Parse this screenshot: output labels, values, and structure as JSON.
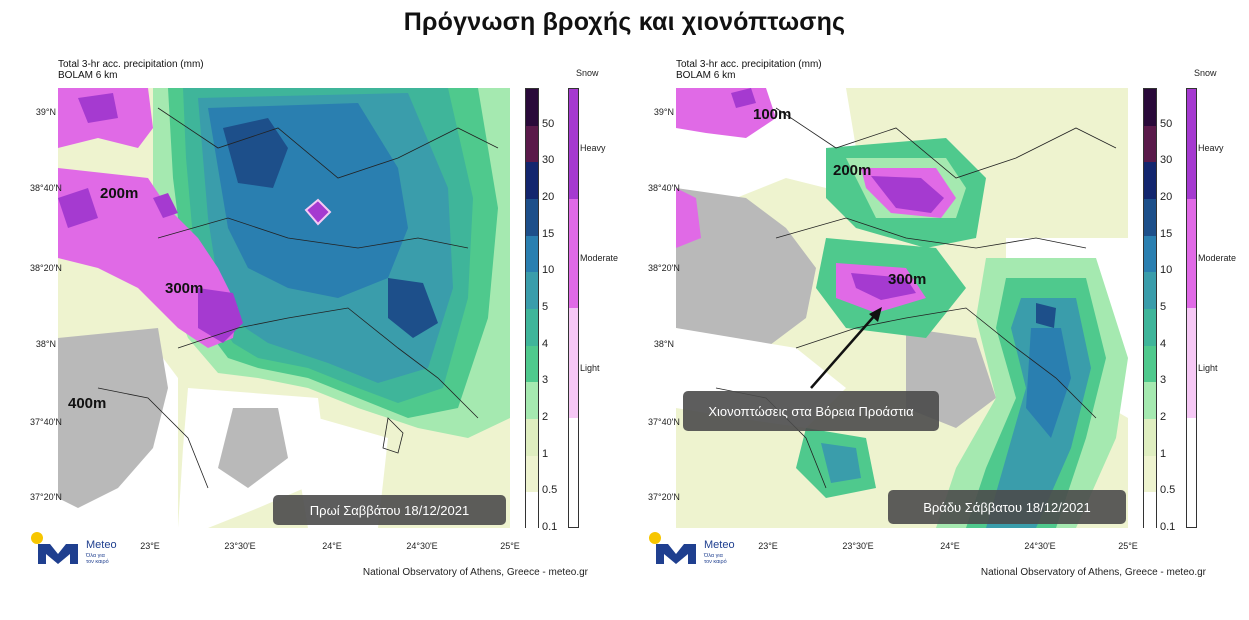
{
  "page": {
    "title": "Πρόγνωση βροχής και χιονόπτωσης"
  },
  "panels": [
    {
      "header_line1": "Total 3-hr acc. precipitation (mm)",
      "header_line2": "BOLAM 6 km",
      "caption": "Πρωί Σαββάτου 18/12/2021",
      "alt_labels": [
        "200m",
        "300m",
        "400m"
      ]
    },
    {
      "header_line1": "Total 3-hr acc. precipitation (mm)",
      "header_line2": "BOLAM 6 km",
      "caption": "Βράδυ Σάββατου 18/12/2021",
      "annotation": "Χιονοπτώσεις στα Βόρεια Προάστια",
      "alt_labels": [
        "100m",
        "200m",
        "300m"
      ]
    }
  ],
  "axes": {
    "lat_ticks": [
      "39°N",
      "38°40'N",
      "38°20'N",
      "38°N",
      "37°40'N",
      "37°20'N"
    ],
    "lon_ticks": [
      "23°E",
      "23°30'E",
      "24°E",
      "24°30'E",
      "25°E"
    ]
  },
  "colorbar": {
    "labels": [
      "50",
      "30",
      "20",
      "15",
      "10",
      "5",
      "4",
      "3",
      "2",
      "1",
      "0.5",
      "0.1"
    ],
    "colors": [
      "#2a0a3a",
      "#5a1a4a",
      "#13266e",
      "#1d4f8a",
      "#2a7fb0",
      "#3a9dab",
      "#3fb59a",
      "#4fc98d",
      "#a5e9b0",
      "#dfeec0",
      "#eef3cf",
      "#ffffff"
    ]
  },
  "snow_legend": {
    "title": "Snow",
    "labels": [
      "Heavy",
      "Moderate",
      "Light"
    ],
    "colors": [
      "#a53ad0",
      "#e06ae6",
      "#f6c8f5"
    ]
  },
  "logo": {
    "name": "Meteo",
    "tagline_line1": "Όλα για",
    "tagline_line2": "τον καιρό"
  },
  "credit": "National Observatory of Athens, Greece - meteo.gr"
}
